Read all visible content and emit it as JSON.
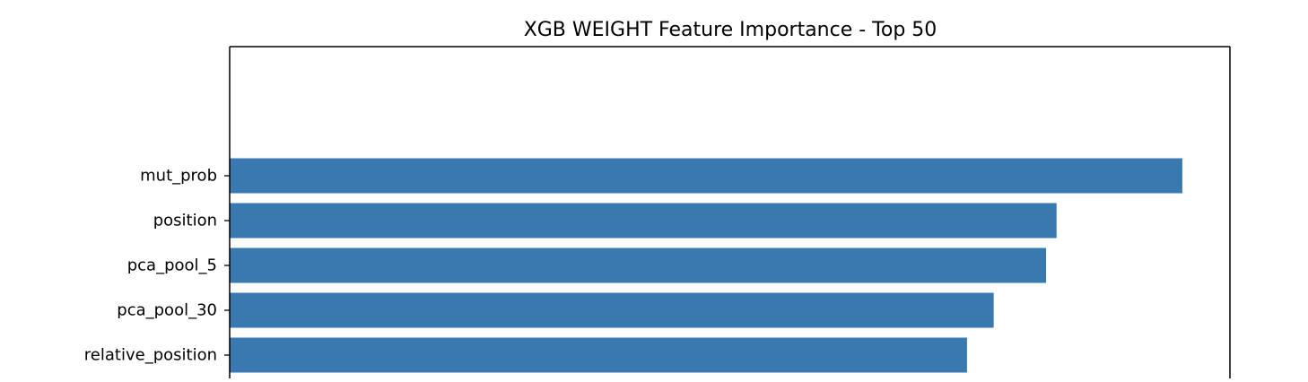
{
  "chart_data": {
    "type": "bar",
    "orientation": "horizontal",
    "title": "XGB WEIGHT Feature Importance - Top 50",
    "xlabel": "",
    "ylabel": "",
    "categories": [
      "mut_prob",
      "position",
      "pca_pool_5",
      "pca_pool_30",
      "relative_position"
    ],
    "values": [
      1.0,
      0.868,
      0.857,
      0.802,
      0.774
    ],
    "xlim": [
      0,
      1.05
    ],
    "grid": false,
    "bar_color": "#3a78b0"
  }
}
